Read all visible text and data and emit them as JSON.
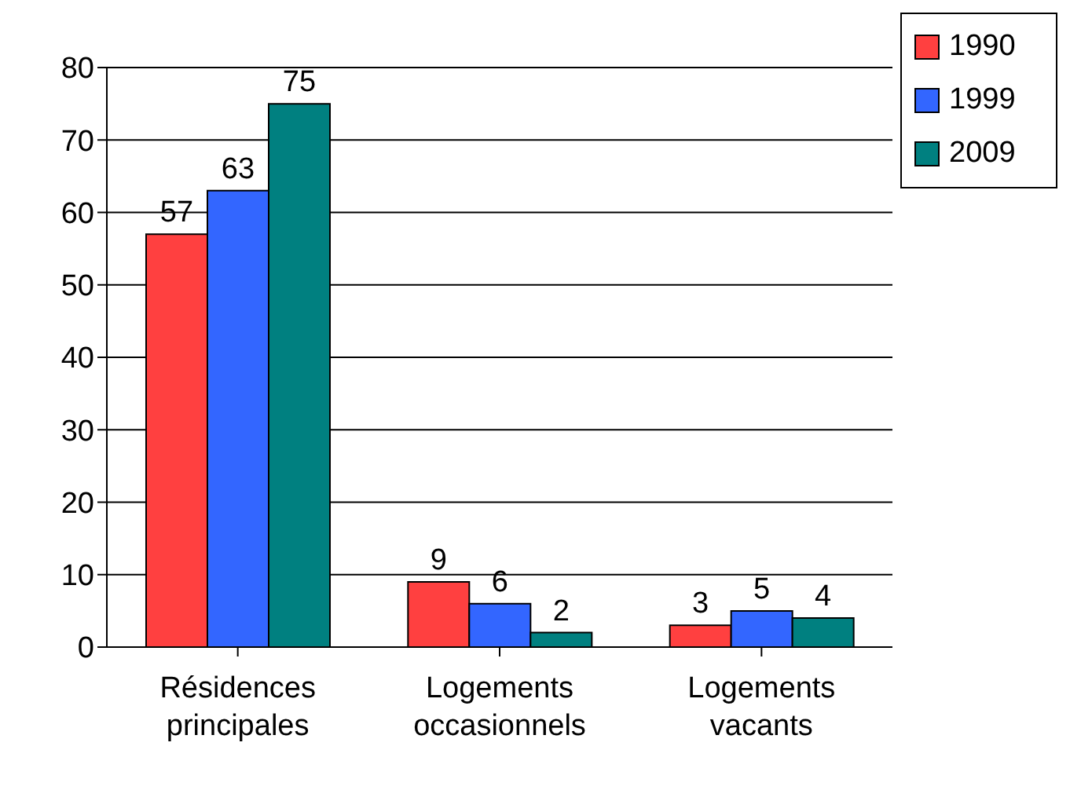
{
  "chart_data": {
    "type": "bar",
    "categories": [
      "Résidences principales",
      "Logements occasionnels",
      "Logements vacants"
    ],
    "series": [
      {
        "name": "1990",
        "color": "#ff4040",
        "values": [
          57,
          9,
          3
        ]
      },
      {
        "name": "1999",
        "color": "#3366ff",
        "values": [
          63,
          6,
          5
        ]
      },
      {
        "name": "2009",
        "color": "#008080",
        "values": [
          75,
          2,
          4
        ]
      }
    ],
    "ylim": [
      0,
      80
    ],
    "yticks": [
      0,
      10,
      20,
      30,
      40,
      50,
      60,
      70,
      80
    ],
    "grid": "y",
    "legend": "top right",
    "data_labels": true
  }
}
